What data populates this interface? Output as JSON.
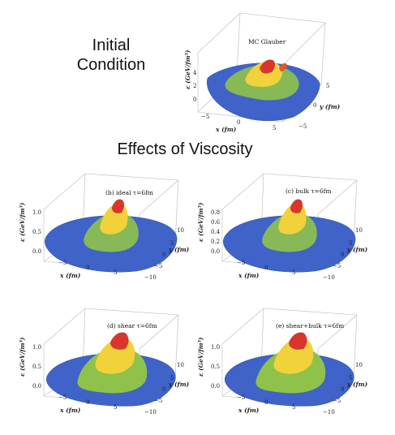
{
  "headings": {
    "initial_line1": "Initial",
    "initial_line2": "Condition",
    "effects": "Effects of Viscosity"
  },
  "colors": {
    "base": "#3f63c8",
    "mid": "#9ecf3a",
    "high": "#f1d23a",
    "peak": "#d8362c"
  },
  "panels": [
    {
      "id": "mc",
      "title": "MC Glauber",
      "zlabel": "ε (GeV/fm³)",
      "xlabel": "x (fm)",
      "ylabel": "y (fm)",
      "zticks": [
        "4",
        "2",
        "0"
      ],
      "xticks": [
        "−5",
        "0",
        "5"
      ],
      "yticks": [
        "5",
        "0",
        "−5"
      ]
    },
    {
      "id": "ideal",
      "title": "(b) ideal τ=6fm",
      "zlabel": "ε (GeV/fm³)",
      "xlabel": "x (fm)",
      "ylabel": "y (fm)",
      "zticks": [
        "1.0",
        "0.5",
        "0.0"
      ],
      "xticks": [
        "−5",
        "0",
        "5"
      ],
      "yticks": [
        "10",
        "5",
        "0",
        "−5",
        "−10"
      ]
    },
    {
      "id": "bulk",
      "title": "(c) bulk τ=6fm",
      "zlabel": "ε (GeV/fm³)",
      "xlabel": "x (fm)",
      "ylabel": "y (fm)",
      "zticks": [
        "0.8",
        "0.6",
        "0.4",
        "0.2",
        "0.0"
      ],
      "xticks": [
        "−5",
        "0",
        "5"
      ],
      "yticks": [
        "10",
        "5",
        "0",
        "−5",
        "−10"
      ]
    },
    {
      "id": "shear",
      "title": "(d) shear τ=6fm",
      "zlabel": "ε (GeV/fm³)",
      "xlabel": "x (fm)",
      "ylabel": "y (fm)",
      "zticks": [
        "1.0",
        "0.5",
        "0.0"
      ],
      "xticks": [
        "−5",
        "0",
        "5"
      ],
      "yticks": [
        "10",
        "5",
        "0",
        "−5",
        "−10"
      ]
    },
    {
      "id": "shearbulk",
      "title": "(e) shear+bulk τ=6fm",
      "zlabel": "ε (GeV/fm³)",
      "xlabel": "x (fm)",
      "ylabel": "y (fm)",
      "zticks": [
        "1.0",
        "0.5",
        "0.0"
      ],
      "xticks": [
        "−5",
        "0",
        "5"
      ],
      "yticks": [
        "10",
        "5",
        "0",
        "−5",
        "−10"
      ]
    }
  ]
}
